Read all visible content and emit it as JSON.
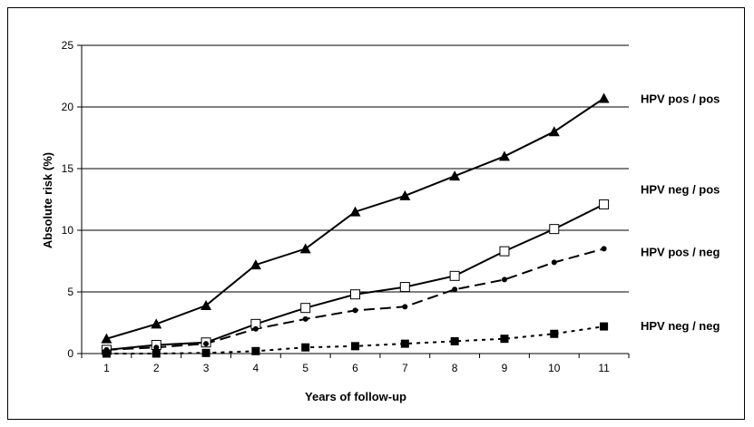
{
  "chart_data": {
    "type": "line",
    "title": "",
    "xlabel": "Years of follow-up",
    "ylabel": "Absolute risk (%)",
    "x": [
      1,
      2,
      3,
      4,
      5,
      6,
      7,
      8,
      9,
      10,
      11
    ],
    "xlim": [
      0.5,
      11.5
    ],
    "ylim": [
      0,
      25
    ],
    "yticks": [
      0,
      5,
      10,
      15,
      20,
      25
    ],
    "grid": "horizontal",
    "legend": "labels at right end of lines",
    "series": [
      {
        "name": "HPV pos / pos",
        "marker": "filled-triangle",
        "line_style": "solid",
        "color": "#000000",
        "values": [
          1.2,
          2.4,
          3.9,
          7.2,
          8.5,
          11.5,
          12.8,
          14.4,
          16.0,
          18.0,
          20.7
        ]
      },
      {
        "name": "HPV neg / pos",
        "marker": "open-square",
        "line_style": "solid",
        "color": "#000000",
        "values": [
          0.3,
          0.7,
          0.9,
          2.4,
          3.7,
          4.8,
          5.4,
          6.3,
          8.3,
          10.1,
          12.1
        ]
      },
      {
        "name": "HPV pos / neg",
        "marker": "filled-circle",
        "line_style": "long-dash",
        "color": "#000000",
        "values": [
          0.3,
          0.5,
          0.8,
          2.0,
          2.8,
          3.5,
          3.8,
          5.2,
          6.0,
          7.4,
          8.5
        ]
      },
      {
        "name": "HPV neg / neg",
        "marker": "filled-square",
        "line_style": "dotted",
        "color": "#000000",
        "values": [
          0.0,
          0.0,
          0.05,
          0.2,
          0.5,
          0.6,
          0.8,
          1.0,
          1.2,
          1.6,
          2.2
        ]
      }
    ]
  }
}
